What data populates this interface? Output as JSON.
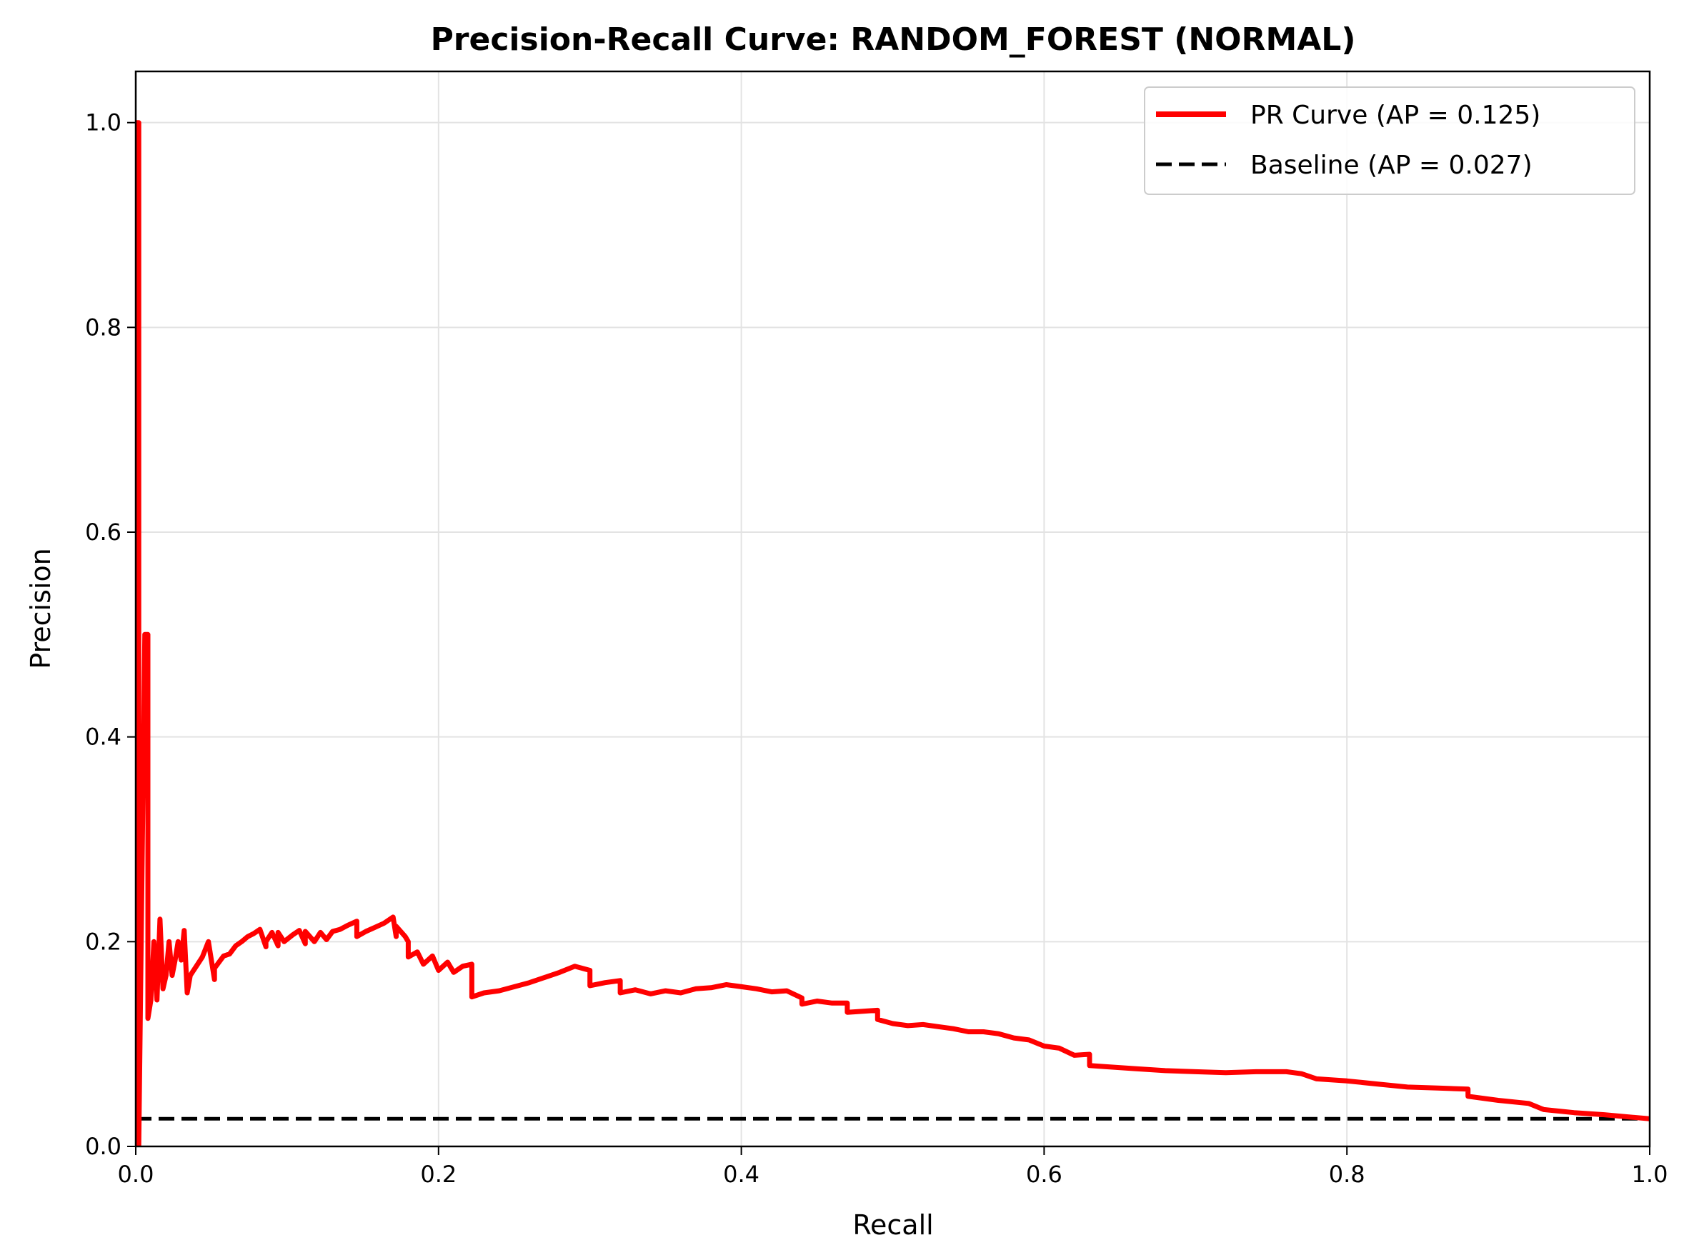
{
  "chart_data": {
    "type": "line",
    "title": "Precision-Recall Curve: RANDOM_FOREST (NORMAL)",
    "xlabel": "Recall",
    "ylabel": "Precision",
    "xlim": [
      0.0,
      1.0
    ],
    "ylim": [
      0.0,
      1.05
    ],
    "x_ticks": [
      "0.0",
      "0.2",
      "0.4",
      "0.6",
      "0.8",
      "1.0"
    ],
    "y_ticks": [
      "0.0",
      "0.2",
      "0.4",
      "0.6",
      "0.8",
      "1.0"
    ],
    "grid": true,
    "legend_position": "top-right",
    "series": [
      {
        "name": "PR Curve (AP = 0.125)",
        "color": "#ff0000",
        "style": "solid",
        "x": [
          0.0,
          0.0,
          0.002,
          0.002,
          0.006,
          0.008,
          0.008,
          0.01,
          0.012,
          0.014,
          0.016,
          0.018,
          0.02,
          0.022,
          0.024,
          0.026,
          0.028,
          0.03,
          0.032,
          0.034,
          0.036,
          0.04,
          0.044,
          0.048,
          0.052,
          0.052,
          0.058,
          0.062,
          0.066,
          0.07,
          0.074,
          0.078,
          0.082,
          0.086,
          0.086,
          0.09,
          0.094,
          0.094,
          0.098,
          0.104,
          0.108,
          0.112,
          0.112,
          0.118,
          0.122,
          0.126,
          0.13,
          0.135,
          0.14,
          0.146,
          0.146,
          0.152,
          0.158,
          0.164,
          0.17,
          0.172,
          0.172,
          0.178,
          0.18,
          0.18,
          0.186,
          0.19,
          0.196,
          0.2,
          0.206,
          0.21,
          0.216,
          0.222,
          0.222,
          0.23,
          0.24,
          0.26,
          0.28,
          0.29,
          0.3,
          0.3,
          0.31,
          0.32,
          0.32,
          0.33,
          0.34,
          0.35,
          0.36,
          0.37,
          0.38,
          0.39,
          0.4,
          0.41,
          0.42,
          0.43,
          0.44,
          0.44,
          0.45,
          0.46,
          0.47,
          0.47,
          0.49,
          0.49,
          0.5,
          0.51,
          0.52,
          0.53,
          0.54,
          0.55,
          0.56,
          0.57,
          0.58,
          0.59,
          0.6,
          0.61,
          0.62,
          0.63,
          0.63,
          0.64,
          0.66,
          0.68,
          0.7,
          0.72,
          0.74,
          0.76,
          0.77,
          0.78,
          0.8,
          0.82,
          0.84,
          0.86,
          0.88,
          0.88,
          0.9,
          0.92,
          0.93,
          0.95,
          0.97,
          1.0
        ],
        "y": [
          0.0,
          1.0,
          1.0,
          0.0,
          0.5,
          0.5,
          0.125,
          0.143,
          0.2,
          0.143,
          0.222,
          0.154,
          0.167,
          0.2,
          0.167,
          0.182,
          0.2,
          0.182,
          0.211,
          0.15,
          0.167,
          0.176,
          0.185,
          0.2,
          0.163,
          0.174,
          0.186,
          0.188,
          0.196,
          0.2,
          0.205,
          0.208,
          0.212,
          0.195,
          0.2,
          0.209,
          0.196,
          0.209,
          0.2,
          0.207,
          0.211,
          0.198,
          0.21,
          0.2,
          0.209,
          0.202,
          0.21,
          0.212,
          0.216,
          0.22,
          0.205,
          0.21,
          0.214,
          0.218,
          0.224,
          0.205,
          0.215,
          0.205,
          0.2,
          0.185,
          0.19,
          0.178,
          0.186,
          0.172,
          0.18,
          0.17,
          0.176,
          0.178,
          0.146,
          0.15,
          0.152,
          0.16,
          0.17,
          0.176,
          0.172,
          0.157,
          0.16,
          0.162,
          0.15,
          0.153,
          0.149,
          0.152,
          0.15,
          0.154,
          0.155,
          0.158,
          0.156,
          0.154,
          0.151,
          0.152,
          0.145,
          0.139,
          0.142,
          0.14,
          0.14,
          0.131,
          0.133,
          0.124,
          0.12,
          0.118,
          0.119,
          0.117,
          0.115,
          0.112,
          0.112,
          0.11,
          0.106,
          0.104,
          0.098,
          0.096,
          0.089,
          0.09,
          0.079,
          0.078,
          0.076,
          0.074,
          0.073,
          0.072,
          0.073,
          0.073,
          0.071,
          0.066,
          0.064,
          0.061,
          0.058,
          0.057,
          0.056,
          0.049,
          0.045,
          0.042,
          0.036,
          0.033,
          0.031,
          0.027
        ]
      },
      {
        "name": "Baseline (AP = 0.027)",
        "color": "#000000",
        "style": "dashed",
        "x": [
          0.0,
          1.0
        ],
        "y": [
          0.027,
          0.027
        ]
      }
    ]
  }
}
